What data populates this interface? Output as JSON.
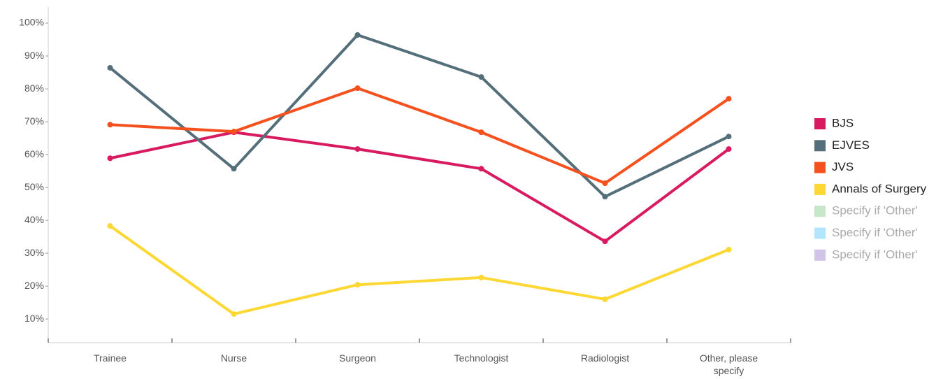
{
  "chart_data": {
    "type": "line",
    "categories": [
      "Trainee",
      "Nurse",
      "Surgeon",
      "Technologist",
      "Radiologist",
      "Other, please specify"
    ],
    "series": [
      {
        "name": "BJS",
        "color": "#d81b60",
        "values": [
          58.9,
          66.8,
          61.7,
          55.7,
          33.6,
          61.7
        ]
      },
      {
        "name": "EJVES",
        "color": "#546e7a",
        "values": [
          86.4,
          55.7,
          96.4,
          83.6,
          47.2,
          65.5
        ]
      },
      {
        "name": "JVS",
        "color": "#f4511e",
        "values": [
          69.1,
          67.0,
          80.2,
          66.8,
          51.3,
          77.0
        ]
      },
      {
        "name": "Annals of Surgery",
        "color": "#fdd835",
        "values": [
          38.3,
          11.5,
          20.4,
          22.6,
          16.0,
          31.1
        ]
      },
      {
        "name": "Specify if 'Other'",
        "color": "#c8e6c9",
        "inactive": true,
        "values": [
          null,
          null,
          null,
          null,
          null,
          null
        ]
      },
      {
        "name": "Specify if 'Other'",
        "color": "#b3e5fc",
        "inactive": true,
        "values": [
          null,
          null,
          null,
          null,
          null,
          null
        ]
      },
      {
        "name": "Specify if 'Other'",
        "color": "#d1c4e9",
        "inactive": true,
        "values": [
          null,
          null,
          null,
          null,
          null,
          null
        ]
      }
    ],
    "ylim": [
      2.8,
      104.9
    ],
    "yticks": [
      {
        "value": 10,
        "label": "10%"
      },
      {
        "value": 20,
        "label": "20%"
      },
      {
        "value": 30,
        "label": "30%"
      },
      {
        "value": 40,
        "label": "40%"
      },
      {
        "value": 50,
        "label": "50%"
      },
      {
        "value": 60,
        "label": "60%"
      },
      {
        "value": 70,
        "label": "70%"
      },
      {
        "value": 80,
        "label": "80%"
      },
      {
        "value": 90,
        "label": "90%"
      },
      {
        "value": 100,
        "label": "100%"
      }
    ],
    "legend": "right",
    "grid": false
  }
}
